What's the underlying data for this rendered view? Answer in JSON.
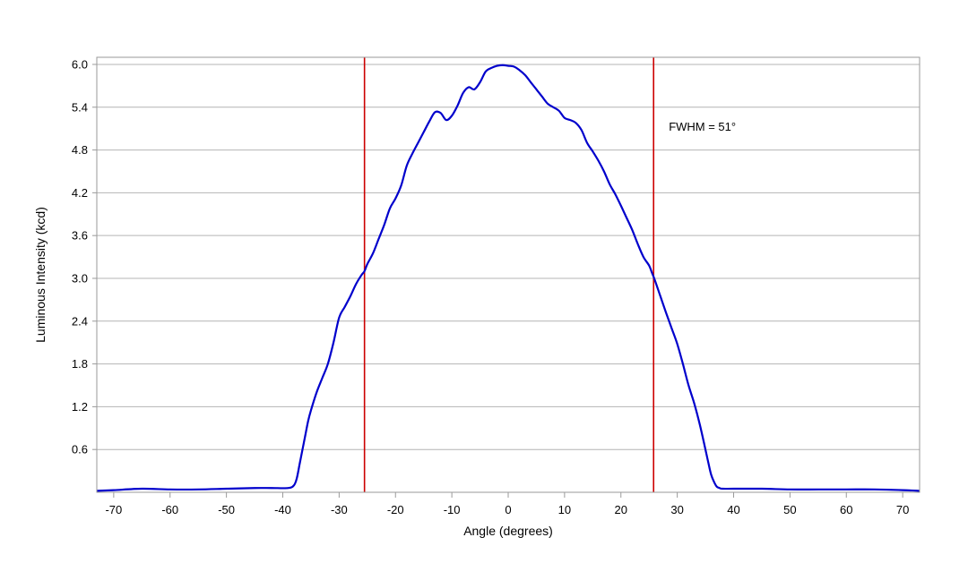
{
  "chart_data": {
    "type": "line",
    "title": "",
    "xlabel": "Angle (degrees)",
    "ylabel": "Luminous Intensity (kcd)",
    "xlim": [
      -73,
      73
    ],
    "ylim": [
      0,
      6.1
    ],
    "grid": "horizontal",
    "x_ticks": [
      -70,
      -60,
      -50,
      -40,
      -30,
      -20,
      -10,
      0,
      10,
      20,
      30,
      40,
      50,
      60,
      70
    ],
    "y_ticks": [
      0.6,
      1.2,
      1.8,
      2.4,
      3.0,
      3.6,
      4.2,
      4.8,
      5.4,
      6.0
    ],
    "x_tick_labels": [
      "-70",
      "-60",
      "-50",
      "-40",
      "-30",
      "-20",
      "-10",
      "0",
      "10",
      "20",
      "30",
      "40",
      "50",
      "60",
      "70"
    ],
    "y_tick_labels": [
      "0.6",
      "1.2",
      "1.8",
      "2.4",
      "3.0",
      "3.6",
      "4.2",
      "4.8",
      "5.4",
      "6.0"
    ],
    "series": [
      {
        "color": "#0000cc",
        "x": [
          -73,
          -70,
          -65,
          -60,
          -55,
          -50,
          -45,
          -42,
          -39,
          -38,
          -37.5,
          -37,
          -36.5,
          -36,
          -35.5,
          -35,
          -34,
          -33,
          -32,
          -31,
          -30,
          -29,
          -28,
          -27,
          -26,
          -25.5,
          -25,
          -24,
          -23,
          -22,
          -21,
          -20,
          -19,
          -18,
          -17,
          -16,
          -15,
          -14,
          -13,
          -12,
          -11,
          -10,
          -9,
          -8,
          -7,
          -6,
          -5,
          -4,
          -3,
          -2,
          -1,
          0,
          1,
          2,
          3,
          4,
          5,
          6,
          7,
          8,
          9,
          10,
          11,
          12,
          13,
          14,
          15,
          16,
          17,
          18,
          19,
          20,
          21,
          22,
          23,
          24,
          25,
          25.5,
          26,
          27,
          28,
          29,
          30,
          31,
          32,
          33,
          34,
          35,
          35.5,
          36,
          36.5,
          37,
          37.5,
          38,
          40,
          45,
          50,
          55,
          60,
          65,
          70,
          73
        ],
        "y": [
          0.02,
          0.03,
          0.05,
          0.04,
          0.04,
          0.05,
          0.06,
          0.06,
          0.06,
          0.1,
          0.2,
          0.4,
          0.6,
          0.8,
          1.0,
          1.15,
          1.4,
          1.6,
          1.8,
          2.1,
          2.45,
          2.6,
          2.75,
          2.92,
          3.05,
          3.1,
          3.2,
          3.35,
          3.55,
          3.75,
          3.98,
          4.12,
          4.3,
          4.58,
          4.75,
          4.9,
          5.05,
          5.2,
          5.33,
          5.32,
          5.22,
          5.28,
          5.42,
          5.6,
          5.68,
          5.65,
          5.75,
          5.9,
          5.95,
          5.98,
          5.99,
          5.98,
          5.97,
          5.92,
          5.85,
          5.75,
          5.65,
          5.55,
          5.45,
          5.4,
          5.35,
          5.25,
          5.22,
          5.18,
          5.08,
          4.9,
          4.78,
          4.65,
          4.5,
          4.32,
          4.18,
          4.02,
          3.85,
          3.68,
          3.48,
          3.3,
          3.18,
          3.08,
          2.98,
          2.75,
          2.52,
          2.3,
          2.08,
          1.8,
          1.5,
          1.25,
          0.95,
          0.6,
          0.42,
          0.25,
          0.15,
          0.08,
          0.06,
          0.05,
          0.05,
          0.05,
          0.04,
          0.04,
          0.04,
          0.04,
          0.03,
          0.02
        ]
      }
    ],
    "vlines": [
      {
        "x": -25.5,
        "color": "#cc0000"
      },
      {
        "x": 25.8,
        "color": "#cc0000"
      }
    ],
    "annotations": [
      {
        "text": "FWHM = 51°",
        "x": 28.5,
        "y": 5.07
      }
    ]
  }
}
